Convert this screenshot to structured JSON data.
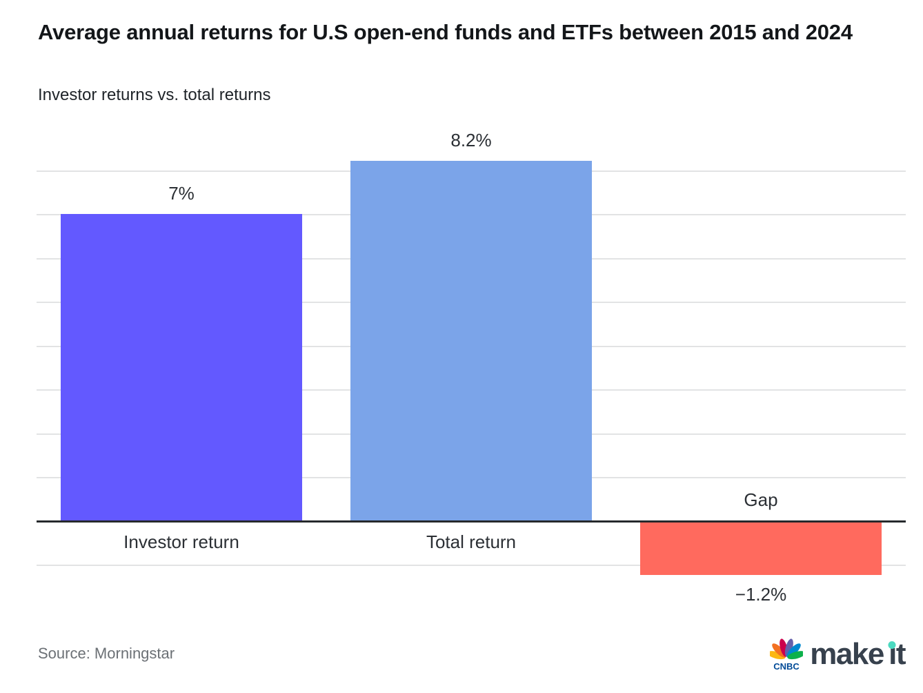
{
  "header": {
    "title": "Average annual returns for U.S open-end funds and ETFs between 2015 and 2024",
    "subtitle": "Investor returns vs. total returns"
  },
  "chart_data": {
    "type": "bar",
    "title": "Average annual returns for U.S open-end funds and ETFs between 2015 and 2024",
    "subtitle": "Investor returns vs. total returns",
    "categories": [
      "Investor return",
      "Total return",
      "Gap"
    ],
    "values": [
      7,
      8.2,
      -1.2
    ],
    "value_labels": [
      "7%",
      "8.2%",
      "−1.2%"
    ],
    "bar_colors": [
      "#6359ff",
      "#7ba4e9",
      "#ff6a5e"
    ],
    "xlabel": "",
    "ylabel": "",
    "unit": "percent",
    "ylim": [
      -1.5,
      9
    ],
    "baseline": 0,
    "grid": "horizontal",
    "grid_interval": 1,
    "gridline_values": [
      8,
      7,
      6,
      5,
      4,
      3,
      2,
      1,
      -1
    ],
    "legend_position": "none",
    "grid_color": "#e2e3e4",
    "baseline_color": "#26292c"
  },
  "footer": {
    "source": "Source: Morningstar",
    "logo": {
      "network": "CNBC",
      "wordmark_make": "make",
      "wordmark_it_stem": "ı",
      "wordmark_it_t": "t",
      "wordmark_full": "make it",
      "peacock_colors": [
        "#fcb711",
        "#f37021",
        "#cc004c",
        "#6460aa",
        "#0089d0",
        "#0db14b"
      ],
      "network_text_color": "#004a97",
      "wordmark_color": "#37414d",
      "dot_color": "#4bd9c0"
    }
  }
}
